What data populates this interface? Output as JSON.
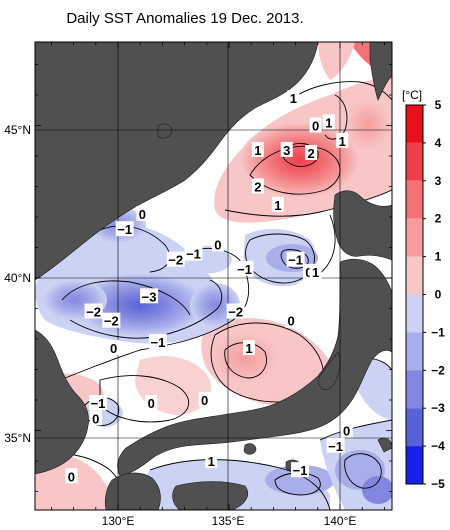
{
  "title": "Daily SST Anomalies 19 Dec. 2013.",
  "unit": "[°C]",
  "lat_labels": [
    "45°N",
    "40°N",
    "35°N"
  ],
  "lon_labels": [
    "130°E",
    "135°E",
    "140°E"
  ],
  "colorbar": {
    "ticks": [
      "5",
      "4",
      "3",
      "2",
      "1",
      "0",
      "-1",
      "-2",
      "-3",
      "-4",
      "-5"
    ],
    "colors_top_to_bottom": [
      "#e8101a",
      "#ee4048",
      "#f27276",
      "#f59c9d",
      "#f8c6c6",
      "#ffffff",
      "#ccd2f4",
      "#a8aee9",
      "#8187df",
      "#5a62d8",
      "#1a20e8"
    ]
  },
  "contour_labels": [
    {
      "text": "1",
      "lon": 137.9,
      "lat": 45.9
    },
    {
      "text": "0",
      "lon": 138.9,
      "lat": 45.0
    },
    {
      "text": "1",
      "lon": 139.5,
      "lat": 45.1
    },
    {
      "text": "1",
      "lon": 140.1,
      "lat": 44.5
    },
    {
      "text": "1",
      "lon": 136.3,
      "lat": 44.2
    },
    {
      "text": "3",
      "lon": 137.6,
      "lat": 44.2
    },
    {
      "text": "2",
      "lon": 138.7,
      "lat": 44.1
    },
    {
      "text": "2",
      "lon": 136.3,
      "lat": 43.0
    },
    {
      "text": "1",
      "lon": 137.2,
      "lat": 42.4
    },
    {
      "text": "0",
      "lon": 131.1,
      "lat": 42.1
    },
    {
      "text": "-1",
      "lon": 130.3,
      "lat": 41.6
    },
    {
      "text": "-2",
      "lon": 132.6,
      "lat": 40.6
    },
    {
      "text": "-1",
      "lon": 133.4,
      "lat": 40.8
    },
    {
      "text": "0",
      "lon": 134.5,
      "lat": 41.1
    },
    {
      "text": "-1",
      "lon": 135.7,
      "lat": 40.3
    },
    {
      "text": "-1",
      "lon": 138.0,
      "lat": 40.6
    },
    {
      "text": "0",
      "lon": 138.6,
      "lat": 40.2
    },
    {
      "text": "1",
      "lon": 138.9,
      "lat": 40.2
    },
    {
      "text": "-3",
      "lon": 131.4,
      "lat": 39.4
    },
    {
      "text": "-2",
      "lon": 128.9,
      "lat": 38.9
    },
    {
      "text": "-2",
      "lon": 129.7,
      "lat": 38.6
    },
    {
      "text": "-2",
      "lon": 135.3,
      "lat": 38.9
    },
    {
      "text": "0",
      "lon": 137.8,
      "lat": 38.6
    },
    {
      "text": "-1",
      "lon": 131.8,
      "lat": 37.9
    },
    {
      "text": "0",
      "lon": 129.8,
      "lat": 37.7
    },
    {
      "text": "1",
      "lon": 135.9,
      "lat": 37.7
    },
    {
      "text": "-1",
      "lon": 129.1,
      "lat": 35.9
    },
    {
      "text": "0",
      "lon": 131.5,
      "lat": 35.9
    },
    {
      "text": "0",
      "lon": 133.9,
      "lat": 36.0
    },
    {
      "text": "0",
      "lon": 129.0,
      "lat": 35.4
    },
    {
      "text": "1",
      "lon": 134.2,
      "lat": 34.0
    },
    {
      "text": "0",
      "lon": 140.3,
      "lat": 35.0
    },
    {
      "text": "-1",
      "lon": 139.8,
      "lat": 34.5
    },
    {
      "text": "-1",
      "lon": 138.2,
      "lat": 33.7
    },
    {
      "text": "0",
      "lon": 127.9,
      "lat": 33.5
    }
  ]
}
